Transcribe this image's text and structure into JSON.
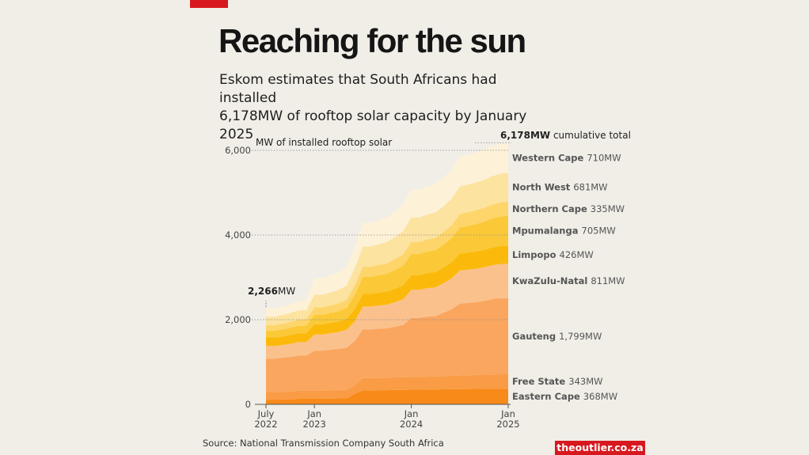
{
  "header": {
    "title": "Reaching for the sun",
    "subtitle_line1": "Eskom estimates that South Africans had installed",
    "subtitle_line2": "6,178MW of rooftop solar capacity by January 2025"
  },
  "footer": {
    "source": "Source: National Transmission Company South Africa",
    "brand": "theoutlier.co.za"
  },
  "colors": {
    "background": "#f0eee7",
    "accent_red": "#d7191f"
  },
  "chart_data": {
    "type": "area",
    "stacked": true,
    "ylabel": "MW of installed rooftop solar",
    "ylim": [
      0,
      6200
    ],
    "yticks": [
      0,
      2000,
      4000,
      6000
    ],
    "ytick_labels": [
      "0",
      "2,000",
      "4,000",
      "6,000"
    ],
    "xlim": [
      0,
      30
    ],
    "xticks": [
      {
        "x": 0,
        "line1": "July",
        "line2": "2022"
      },
      {
        "x": 6,
        "line1": "Jan",
        "line2": "2023"
      },
      {
        "x": 18,
        "line1": "Jan",
        "line2": "2024"
      },
      {
        "x": 30,
        "line1": "Jan",
        "line2": "2025"
      }
    ],
    "x": [
      0,
      1,
      2,
      3,
      4,
      5,
      6,
      7,
      8,
      9,
      10,
      11,
      12,
      13,
      14,
      15,
      16,
      17,
      18,
      19,
      20,
      21,
      22,
      23,
      24,
      25,
      26,
      27,
      28,
      29,
      30
    ],
    "start_annotation": {
      "value_bold": "2,266",
      "unit": "MW"
    },
    "total_annotation": {
      "value_bold": "6,178MW",
      "text": " cumulative total"
    },
    "series": [
      {
        "name": "Eastern Cape",
        "value_label": "368MW",
        "color": "#f88a19",
        "values": [
          110,
          110,
          115,
          120,
          130,
          130,
          130,
          130,
          135,
          140,
          140,
          250,
          330,
          330,
          335,
          335,
          340,
          340,
          345,
          345,
          350,
          350,
          355,
          360,
          360,
          362,
          364,
          366,
          367,
          368,
          368
        ]
      },
      {
        "name": "Free State",
        "value_label": "343MW",
        "color": "#f99c45",
        "values": [
          170,
          170,
          175,
          180,
          190,
          190,
          190,
          190,
          195,
          200,
          200,
          200,
          290,
          290,
          290,
          290,
          295,
          295,
          300,
          300,
          305,
          305,
          310,
          315,
          320,
          325,
          330,
          335,
          340,
          343,
          343
        ]
      },
      {
        "name": "Gauteng",
        "value_label": "1,799MW",
        "color": "#faa65f",
        "values": [
          800,
          800,
          810,
          820,
          830,
          830,
          950,
          950,
          960,
          970,
          1000,
          1050,
          1150,
          1150,
          1160,
          1170,
          1200,
          1240,
          1400,
          1400,
          1420,
          1430,
          1500,
          1570,
          1700,
          1710,
          1720,
          1740,
          1780,
          1795,
          1799
        ]
      },
      {
        "name": "KwaZulu-Natal",
        "value_label": "811MW",
        "color": "#fbc18d",
        "values": [
          300,
          300,
          300,
          310,
          320,
          320,
          380,
          380,
          390,
          400,
          420,
          460,
          540,
          540,
          550,
          560,
          580,
          610,
          660,
          660,
          670,
          680,
          700,
          730,
          780,
          785,
          790,
          795,
          800,
          808,
          811
        ]
      },
      {
        "name": "Limpopo",
        "value_label": "426MW",
        "color": "#fbba0b",
        "values": [
          200,
          200,
          200,
          210,
          210,
          210,
          240,
          240,
          245,
          250,
          260,
          290,
          300,
          300,
          305,
          310,
          320,
          330,
          350,
          350,
          355,
          360,
          370,
          380,
          400,
          405,
          410,
          415,
          420,
          424,
          426
        ]
      },
      {
        "name": "Mpumalanga",
        "value_label": "705MW",
        "color": "#fbc938",
        "values": [
          160,
          160,
          165,
          170,
          175,
          180,
          230,
          230,
          235,
          245,
          260,
          340,
          400,
          400,
          410,
          420,
          440,
          460,
          500,
          500,
          510,
          520,
          540,
          570,
          620,
          630,
          645,
          660,
          680,
          698,
          705
        ]
      },
      {
        "name": "Northern Cape",
        "value_label": "335MW",
        "color": "#fdd56a",
        "values": [
          130,
          130,
          135,
          140,
          145,
          150,
          170,
          170,
          175,
          180,
          190,
          215,
          240,
          240,
          245,
          250,
          260,
          270,
          280,
          280,
          285,
          290,
          295,
          305,
          315,
          318,
          322,
          326,
          330,
          333,
          335
        ]
      },
      {
        "name": "North West",
        "value_label": "681MW",
        "color": "#fde3a0",
        "values": [
          200,
          200,
          205,
          210,
          215,
          220,
          300,
          300,
          310,
          320,
          340,
          420,
          480,
          480,
          490,
          500,
          520,
          550,
          580,
          580,
          590,
          600,
          610,
          630,
          650,
          655,
          660,
          665,
          672,
          678,
          681
        ]
      },
      {
        "name": "Western Cape",
        "value_label": "710MW",
        "color": "#fdf2d8",
        "values": [
          196,
          196,
          200,
          210,
          220,
          230,
          390,
          390,
          400,
          410,
          430,
          490,
          560,
          560,
          570,
          580,
          600,
          630,
          660,
          660,
          665,
          670,
          680,
          690,
          700,
          702,
          704,
          706,
          708,
          709,
          710
        ]
      }
    ]
  }
}
